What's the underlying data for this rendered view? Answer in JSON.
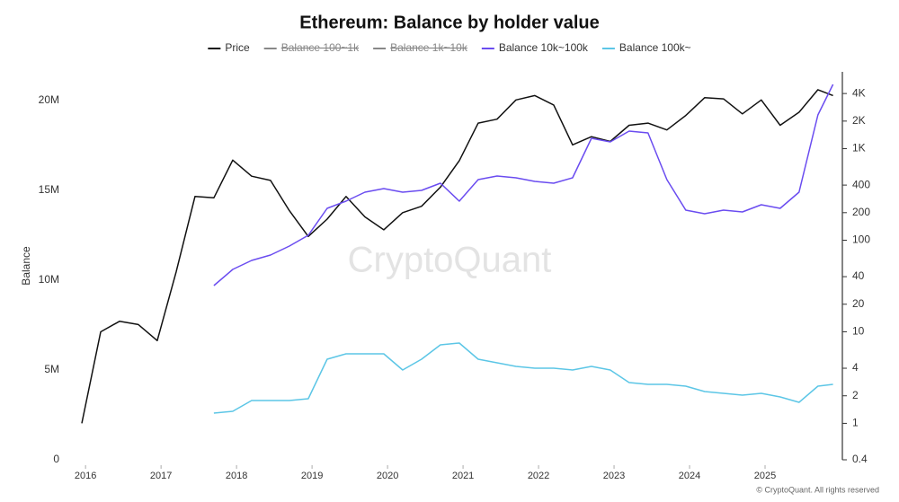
{
  "chart_data": {
    "type": "line",
    "title": "Ethereum: Balance by holder value",
    "y_label": "Balance",
    "watermark": "CryptoQuant",
    "footer": "© CryptoQuant. All rights reserved",
    "x": [
      2015.95,
      2016.2,
      2016.45,
      2016.7,
      2016.95,
      2017.2,
      2017.45,
      2017.7,
      2017.95,
      2018.2,
      2018.45,
      2018.7,
      2018.95,
      2019.2,
      2019.45,
      2019.7,
      2019.95,
      2020.2,
      2020.45,
      2020.7,
      2020.95,
      2021.2,
      2021.45,
      2021.7,
      2021.95,
      2022.2,
      2022.45,
      2022.7,
      2022.95,
      2023.2,
      2023.45,
      2023.7,
      2023.95,
      2024.2,
      2024.45,
      2024.7,
      2024.95,
      2025.2,
      2025.45,
      2025.7,
      2025.9
    ],
    "xlim": [
      2015.76,
      2026.0
    ],
    "xticks": [
      2016,
      2017,
      2018,
      2019,
      2020,
      2021,
      2022,
      2023,
      2024,
      2025
    ],
    "ylim": [
      0,
      21600000
    ],
    "yticks": [
      {
        "value": 0,
        "label": "0"
      },
      {
        "value": 5000000,
        "label": "5M"
      },
      {
        "value": 10000000,
        "label": "10M"
      },
      {
        "value": 15000000,
        "label": "15M"
      },
      {
        "value": 20000000,
        "label": "20M"
      }
    ],
    "y2lim": [
      0.4,
      6900
    ],
    "y2scale": "log",
    "y2ticks": [
      0.4,
      1,
      2,
      4,
      10,
      20,
      40,
      100,
      200,
      400,
      {
        "value": 1000,
        "label": "1K"
      },
      {
        "value": 2000,
        "label": "2K"
      },
      {
        "value": 4000,
        "label": "4K"
      }
    ],
    "series": [
      {
        "name": "Price",
        "color": "#111111",
        "axis": "y2",
        "visible": true,
        "values": [
          1,
          10,
          13,
          12,
          8,
          45,
          300,
          290,
          750,
          500,
          450,
          210,
          110,
          170,
          300,
          180,
          130,
          200,
          235,
          380,
          740,
          1900,
          2100,
          3400,
          3800,
          3000,
          1100,
          1350,
          1200,
          1800,
          1900,
          1600,
          2300,
          3600,
          3500,
          2400,
          3400,
          1800,
          2500,
          4400,
          3800
        ]
      },
      {
        "name": "Balance 100~1k",
        "color": "#888888",
        "visible": false
      },
      {
        "name": "Balance 1k~10k",
        "color": "#888888",
        "visible": false
      },
      {
        "name": "Balance 10k~100k",
        "color": "#6a4cf0",
        "visible": true,
        "values": [
          null,
          null,
          null,
          null,
          null,
          null,
          null,
          9700000,
          10600000,
          11100000,
          11400000,
          11900000,
          12500000,
          14000000,
          14400000,
          14900000,
          15100000,
          14900000,
          15000000,
          15400000,
          14400000,
          15600000,
          15800000,
          15700000,
          15500000,
          15400000,
          15700000,
          17900000,
          17700000,
          18300000,
          18200000,
          15600000,
          13900000,
          13700000,
          13900000,
          13800000,
          14200000,
          14000000,
          14900000,
          19200000,
          20900000
        ]
      },
      {
        "name": "Balance 100k~",
        "color": "#5cc6e6",
        "visible": true,
        "values": [
          null,
          null,
          null,
          null,
          null,
          null,
          null,
          2600000,
          2700000,
          3300000,
          3300000,
          3300000,
          3400000,
          5600000,
          5900000,
          5900000,
          5900000,
          5000000,
          5600000,
          6400000,
          6500000,
          5600000,
          5400000,
          5200000,
          5100000,
          5100000,
          5000000,
          5200000,
          5000000,
          4300000,
          4200000,
          4200000,
          4100000,
          3800000,
          3700000,
          3600000,
          3700000,
          3500000,
          3200000,
          4100000,
          4200000
        ]
      }
    ]
  }
}
